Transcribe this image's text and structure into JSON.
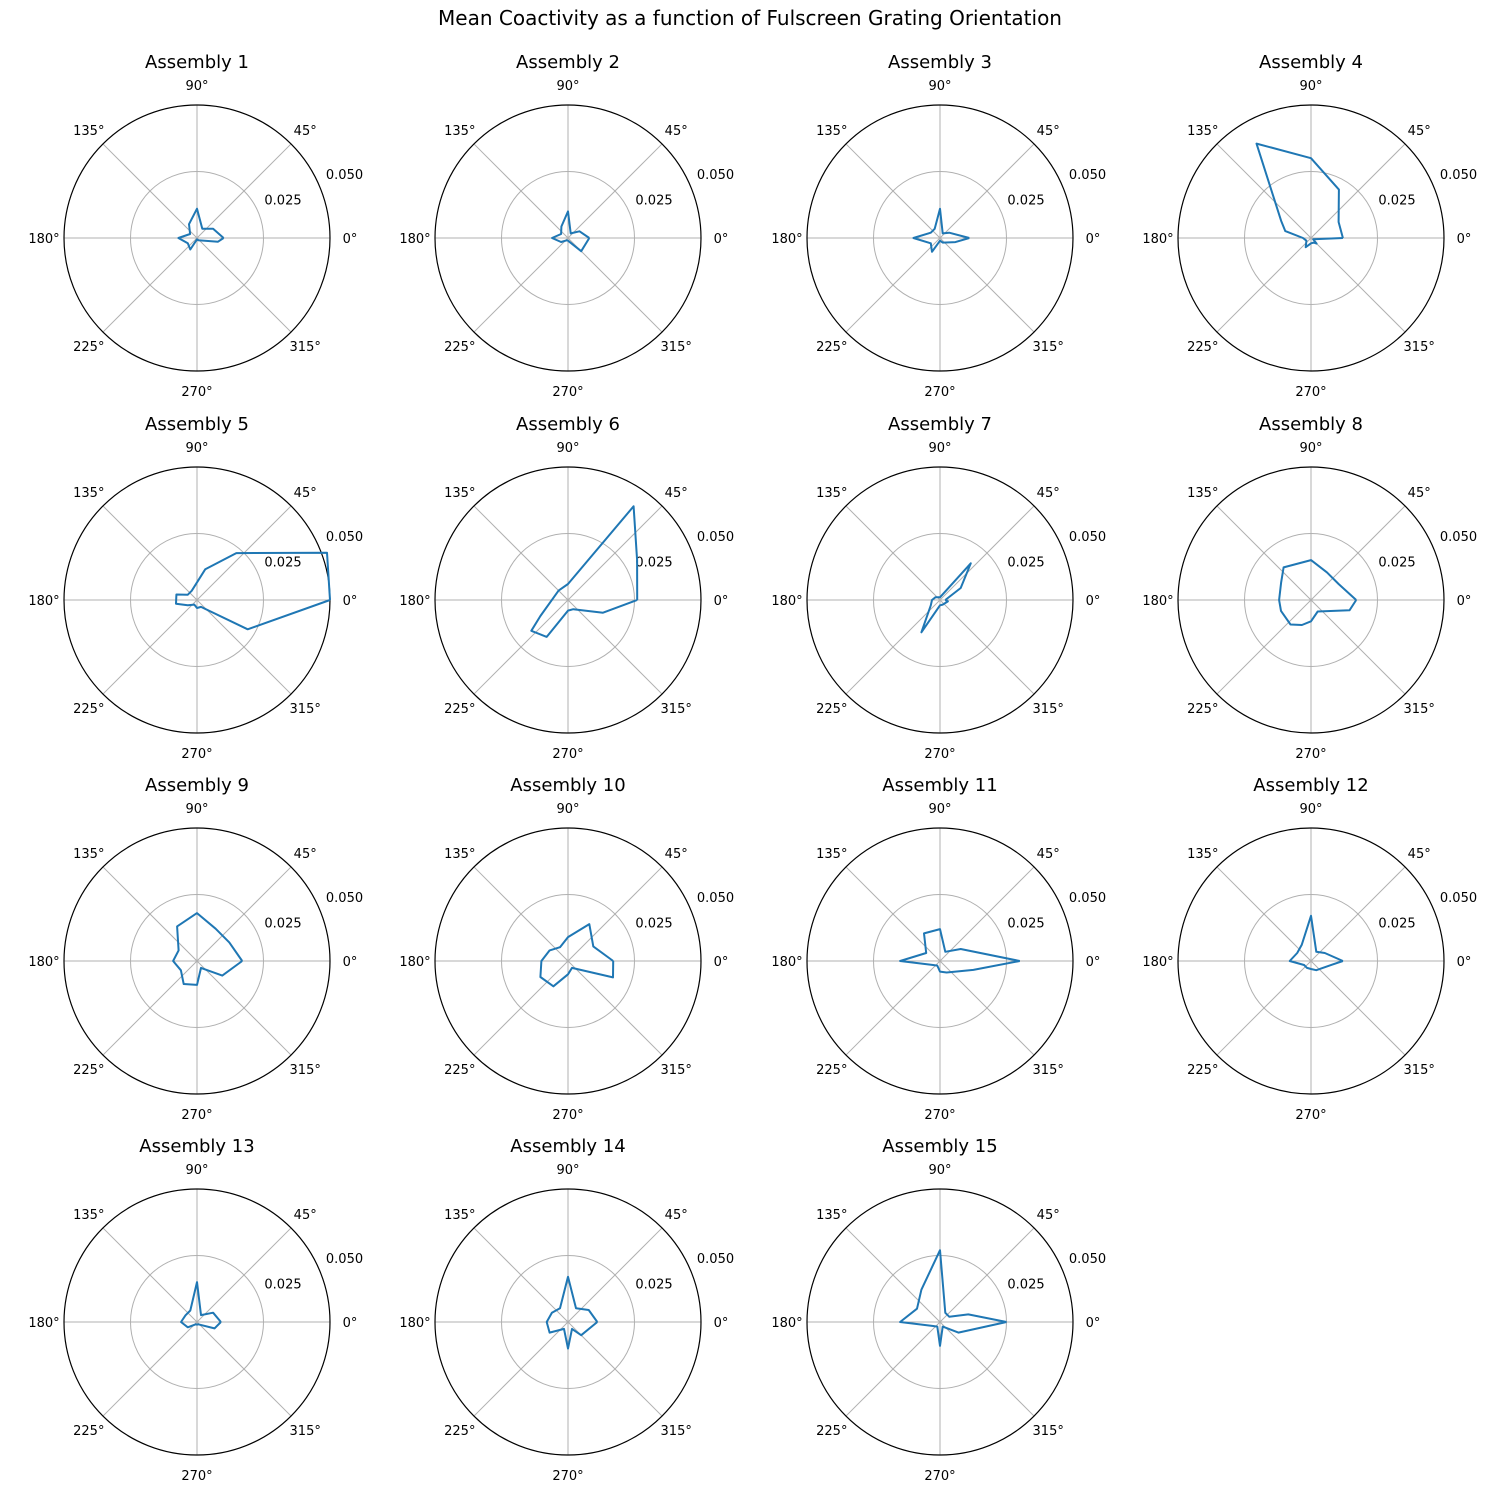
{
  "figure": {
    "title": "Mean Coactivity as a function of Fulscreen Grating Orientation"
  },
  "colors": {
    "series": "#1f77b4",
    "grid": "#b0b0b0",
    "spine": "#000000"
  },
  "chart_data": {
    "type": "polar-line",
    "theta_tick_labels": [
      "0°",
      "45°",
      "90°",
      "135°",
      "180°",
      "225°",
      "270°",
      "315°"
    ],
    "r_tick_labels": [
      "0.025",
      "0.050"
    ],
    "rlim": [
      0,
      0.05
    ],
    "theta_unit": "degrees",
    "grid": true,
    "panels": [
      {
        "title": "Assembly 1",
        "points": [
          [
            0,
            0.01
          ],
          [
            30,
            0.007
          ],
          [
            60,
            0.004
          ],
          [
            90,
            0.011
          ],
          [
            120,
            0.006
          ],
          [
            150,
            0.003
          ],
          [
            180,
            0.007
          ],
          [
            210,
            0.004
          ],
          [
            240,
            0.005
          ],
          [
            270,
            0.0005
          ],
          [
            300,
            0.001
          ],
          [
            350,
            0.008
          ],
          [
            0,
            0.01
          ]
        ]
      },
      {
        "title": "Assembly 2",
        "points": [
          [
            0,
            0.008
          ],
          [
            30,
            0.005
          ],
          [
            60,
            0.002
          ],
          [
            90,
            0.01
          ],
          [
            120,
            0.005
          ],
          [
            150,
            0.003
          ],
          [
            180,
            0.006
          ],
          [
            210,
            0.003
          ],
          [
            240,
            0.001
          ],
          [
            270,
            0.001
          ],
          [
            315,
            0.007
          ],
          [
            0,
            0.008
          ]
        ]
      },
      {
        "title": "Assembly 3",
        "points": [
          [
            0,
            0.011
          ],
          [
            30,
            0.004
          ],
          [
            60,
            0.002
          ],
          [
            90,
            0.011
          ],
          [
            120,
            0.004
          ],
          [
            150,
            0.004
          ],
          [
            180,
            0.01
          ],
          [
            210,
            0.004
          ],
          [
            240,
            0.006
          ],
          [
            270,
            0.001
          ],
          [
            300,
            0.002
          ],
          [
            345,
            0.006
          ],
          [
            0,
            0.011
          ]
        ]
      },
      {
        "title": "Assembly 4",
        "points": [
          [
            0,
            0.012
          ],
          [
            30,
            0.012
          ],
          [
            60,
            0.021
          ],
          [
            90,
            0.03
          ],
          [
            120,
            0.041
          ],
          [
            150,
            0.013
          ],
          [
            165,
            0.01
          ],
          [
            180,
            0.003
          ],
          [
            210,
            0.002
          ],
          [
            240,
            0.004
          ],
          [
            270,
            0.002
          ],
          [
            300,
            0.002
          ],
          [
            315,
            0.003
          ],
          [
            330,
            0.001
          ],
          [
            0,
            0.012
          ]
        ]
      },
      {
        "title": "Assembly 5",
        "points": [
          [
            0,
            0.05
          ],
          [
            20,
            0.052
          ],
          [
            50,
            0.023
          ],
          [
            75,
            0.012
          ],
          [
            120,
            0.004
          ],
          [
            150,
            0.004
          ],
          [
            165,
            0.008
          ],
          [
            190,
            0.008
          ],
          [
            210,
            0.004
          ],
          [
            240,
            0.002
          ],
          [
            270,
            0.003
          ],
          [
            300,
            0.003
          ],
          [
            330,
            0.022
          ],
          [
            0,
            0.05
          ]
        ]
      },
      {
        "title": "Assembly 6",
        "points": [
          [
            0,
            0.026
          ],
          [
            30,
            0.03
          ],
          [
            55,
            0.043
          ],
          [
            90,
            0.006
          ],
          [
            135,
            0.005
          ],
          [
            210,
            0.012
          ],
          [
            220,
            0.018
          ],
          [
            240,
            0.016
          ],
          [
            270,
            0.004
          ],
          [
            300,
            0.004
          ],
          [
            340,
            0.014
          ],
          [
            0,
            0.026
          ]
        ]
      },
      {
        "title": "Assembly 7",
        "points": [
          [
            0,
            0.002
          ],
          [
            30,
            0.009
          ],
          [
            50,
            0.018
          ],
          [
            90,
            0.001
          ],
          [
            150,
            0.002
          ],
          [
            180,
            0.003
          ],
          [
            210,
            0.004
          ],
          [
            240,
            0.014
          ],
          [
            270,
            0.002
          ],
          [
            300,
            0.002
          ],
          [
            350,
            0.003
          ],
          [
            0,
            0.002
          ]
        ]
      },
      {
        "title": "Assembly 8",
        "points": [
          [
            0,
            0.017
          ],
          [
            30,
            0.012
          ],
          [
            60,
            0.012
          ],
          [
            90,
            0.015
          ],
          [
            130,
            0.016
          ],
          [
            150,
            0.013
          ],
          [
            180,
            0.012
          ],
          [
            200,
            0.012
          ],
          [
            230,
            0.012
          ],
          [
            250,
            0.01
          ],
          [
            270,
            0.008
          ],
          [
            300,
            0.005
          ],
          [
            345,
            0.015
          ],
          [
            0,
            0.017
          ]
        ]
      },
      {
        "title": "Assembly 9",
        "points": [
          [
            0,
            0.017
          ],
          [
            30,
            0.014
          ],
          [
            60,
            0.014
          ],
          [
            90,
            0.018
          ],
          [
            120,
            0.015
          ],
          [
            150,
            0.008
          ],
          [
            180,
            0.009
          ],
          [
            210,
            0.007
          ],
          [
            240,
            0.01
          ],
          [
            270,
            0.009
          ],
          [
            300,
            0.003
          ],
          [
            330,
            0.011
          ],
          [
            0,
            0.017
          ]
        ]
      },
      {
        "title": "Assembly 10",
        "points": [
          [
            0,
            0.017
          ],
          [
            30,
            0.011
          ],
          [
            60,
            0.016
          ],
          [
            90,
            0.009
          ],
          [
            120,
            0.006
          ],
          [
            150,
            0.008
          ],
          [
            180,
            0.01
          ],
          [
            210,
            0.012
          ],
          [
            240,
            0.011
          ],
          [
            270,
            0.005
          ],
          [
            300,
            0.003
          ],
          [
            340,
            0.018
          ],
          [
            0,
            0.017
          ]
        ]
      },
      {
        "title": "Assembly 11",
        "points": [
          [
            0,
            0.03
          ],
          [
            30,
            0.009
          ],
          [
            60,
            0.004
          ],
          [
            90,
            0.012
          ],
          [
            120,
            0.012
          ],
          [
            150,
            0.006
          ],
          [
            180,
            0.015
          ],
          [
            210,
            0.003
          ],
          [
            240,
            0.002
          ],
          [
            270,
            0.004
          ],
          [
            300,
            0.005
          ],
          [
            345,
            0.013
          ],
          [
            0,
            0.03
          ]
        ]
      },
      {
        "title": "Assembly 12",
        "points": [
          [
            0,
            0.012
          ],
          [
            30,
            0.006
          ],
          [
            60,
            0.004
          ],
          [
            90,
            0.017
          ],
          [
            120,
            0.007
          ],
          [
            150,
            0.006
          ],
          [
            180,
            0.008
          ],
          [
            210,
            0.003
          ],
          [
            240,
            0.003
          ],
          [
            270,
            0.003
          ],
          [
            300,
            0.004
          ],
          [
            350,
            0.008
          ],
          [
            0,
            0.012
          ]
        ]
      },
      {
        "title": "Assembly 13",
        "points": [
          [
            0,
            0.009
          ],
          [
            30,
            0.007
          ],
          [
            60,
            0.003
          ],
          [
            90,
            0.015
          ],
          [
            120,
            0.005
          ],
          [
            150,
            0.005
          ],
          [
            180,
            0.006
          ],
          [
            210,
            0.004
          ],
          [
            240,
            0.001
          ],
          [
            270,
            0.001
          ],
          [
            300,
            0.001
          ],
          [
            340,
            0.007
          ],
          [
            0,
            0.009
          ]
        ]
      },
      {
        "title": "Assembly 14",
        "points": [
          [
            0,
            0.011
          ],
          [
            30,
            0.009
          ],
          [
            60,
            0.006
          ],
          [
            90,
            0.017
          ],
          [
            120,
            0.006
          ],
          [
            150,
            0.007
          ],
          [
            180,
            0.008
          ],
          [
            210,
            0.008
          ],
          [
            240,
            0.003
          ],
          [
            270,
            0.01
          ],
          [
            300,
            0.003
          ],
          [
            315,
            0.007
          ],
          [
            0,
            0.011
          ]
        ]
      },
      {
        "title": "Assembly 15",
        "points": [
          [
            0,
            0.025
          ],
          [
            15,
            0.011
          ],
          [
            30,
            0.004
          ],
          [
            60,
            0.004
          ],
          [
            90,
            0.027
          ],
          [
            120,
            0.014
          ],
          [
            150,
            0.01
          ],
          [
            180,
            0.015
          ],
          [
            210,
            0.003
          ],
          [
            240,
            0.002
          ],
          [
            270,
            0.009
          ],
          [
            300,
            0.002
          ],
          [
            330,
            0.008
          ],
          [
            0,
            0.025
          ]
        ]
      }
    ]
  }
}
